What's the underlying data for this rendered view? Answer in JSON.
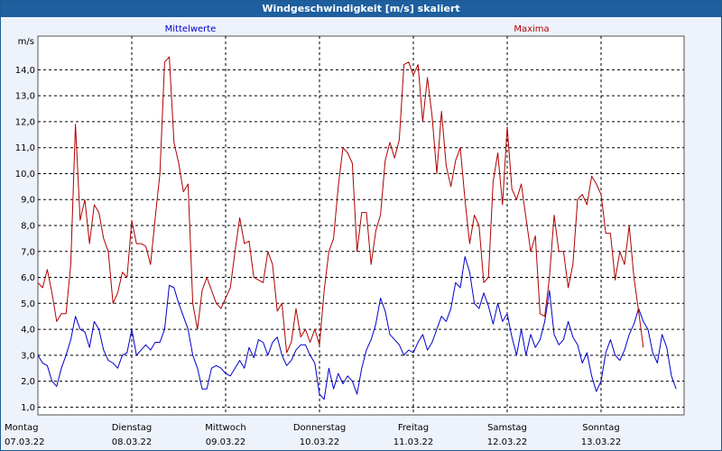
{
  "window": {
    "title": "Windgeschwindigkeit [m/s] skaliert"
  },
  "chart_data": {
    "type": "line",
    "title": "Windgeschwindigkeit [m/s] skaliert",
    "ylabel": "m/s",
    "ylim": [
      0.7,
      15.3
    ],
    "yticks": [
      "1,0",
      "2,0",
      "3,0",
      "4,0",
      "5,0",
      "6,0",
      "7,0",
      "8,0",
      "9,0",
      "10,0",
      "11,0",
      "12,0",
      "13,0",
      "14,0"
    ],
    "xlim": [
      0,
      7
    ],
    "x_unit": "days from 07.03.22",
    "xticks": [
      {
        "day": "Montag",
        "date": "07.03.22"
      },
      {
        "day": "Dienstag",
        "date": "08.03.22"
      },
      {
        "day": "Mittwoch",
        "date": "09.03.22"
      },
      {
        "day": "Donnerstag",
        "date": "10.03.22"
      },
      {
        "day": "Freitag",
        "date": "11.03.22"
      },
      {
        "day": "Samstag",
        "date": "12.03.22"
      },
      {
        "day": "Sonntag",
        "date": "13.03.22"
      }
    ],
    "grid": true,
    "series": [
      {
        "name": "Mittelwerte",
        "color": "#0000cc",
        "points": [
          [
            0.0,
            3.0
          ],
          [
            0.05,
            2.7
          ],
          [
            0.1,
            2.6
          ],
          [
            0.15,
            2.0
          ],
          [
            0.2,
            1.8
          ],
          [
            0.25,
            2.5
          ],
          [
            0.3,
            3.0
          ],
          [
            0.35,
            3.6
          ],
          [
            0.4,
            4.5
          ],
          [
            0.45,
            4.0
          ],
          [
            0.5,
            3.9
          ],
          [
            0.55,
            3.3
          ],
          [
            0.6,
            4.3
          ],
          [
            0.65,
            4.0
          ],
          [
            0.7,
            3.2
          ],
          [
            0.75,
            2.8
          ],
          [
            0.8,
            2.7
          ],
          [
            0.85,
            2.5
          ],
          [
            0.9,
            3.0
          ],
          [
            0.95,
            3.1
          ],
          [
            1.0,
            4.0
          ],
          [
            1.05,
            3.0
          ],
          [
            1.1,
            3.2
          ],
          [
            1.15,
            3.4
          ],
          [
            1.2,
            3.2
          ],
          [
            1.25,
            3.5
          ],
          [
            1.3,
            3.5
          ],
          [
            1.35,
            4.0
          ],
          [
            1.4,
            5.7
          ],
          [
            1.45,
            5.6
          ],
          [
            1.5,
            5.0
          ],
          [
            1.55,
            4.5
          ],
          [
            1.6,
            4.0
          ],
          [
            1.65,
            3.0
          ],
          [
            1.7,
            2.5
          ],
          [
            1.75,
            1.7
          ],
          [
            1.8,
            1.7
          ],
          [
            1.85,
            2.5
          ],
          [
            1.9,
            2.6
          ],
          [
            1.95,
            2.5
          ],
          [
            2.0,
            2.3
          ],
          [
            2.05,
            2.2
          ],
          [
            2.1,
            2.5
          ],
          [
            2.15,
            2.8
          ],
          [
            2.2,
            2.5
          ],
          [
            2.25,
            3.3
          ],
          [
            2.3,
            2.9
          ],
          [
            2.35,
            3.6
          ],
          [
            2.4,
            3.5
          ],
          [
            2.45,
            3.0
          ],
          [
            2.5,
            3.5
          ],
          [
            2.55,
            3.7
          ],
          [
            2.6,
            3.0
          ],
          [
            2.65,
            2.6
          ],
          [
            2.7,
            2.8
          ],
          [
            2.75,
            3.2
          ],
          [
            2.8,
            3.4
          ],
          [
            2.85,
            3.4
          ],
          [
            2.9,
            3.0
          ],
          [
            2.95,
            2.7
          ],
          [
            3.0,
            1.5
          ],
          [
            3.05,
            1.3
          ],
          [
            3.1,
            2.5
          ],
          [
            3.15,
            1.7
          ],
          [
            3.2,
            2.3
          ],
          [
            3.25,
            1.9
          ],
          [
            3.3,
            2.2
          ],
          [
            3.35,
            2.0
          ],
          [
            3.4,
            1.5
          ],
          [
            3.45,
            2.5
          ],
          [
            3.5,
            3.2
          ],
          [
            3.55,
            3.6
          ],
          [
            3.6,
            4.2
          ],
          [
            3.65,
            5.2
          ],
          [
            3.7,
            4.7
          ],
          [
            3.75,
            3.8
          ],
          [
            3.8,
            3.6
          ],
          [
            3.85,
            3.4
          ],
          [
            3.9,
            3.0
          ],
          [
            3.95,
            3.2
          ],
          [
            4.0,
            3.1
          ],
          [
            4.05,
            3.5
          ],
          [
            4.1,
            3.8
          ],
          [
            4.15,
            3.2
          ],
          [
            4.2,
            3.5
          ],
          [
            4.25,
            4.0
          ],
          [
            4.3,
            4.5
          ],
          [
            4.35,
            4.3
          ],
          [
            4.4,
            4.8
          ],
          [
            4.45,
            5.8
          ],
          [
            4.5,
            5.6
          ],
          [
            4.55,
            6.8
          ],
          [
            4.6,
            6.2
          ],
          [
            4.65,
            5.0
          ],
          [
            4.7,
            4.8
          ],
          [
            4.75,
            5.4
          ],
          [
            4.8,
            4.9
          ],
          [
            4.85,
            4.2
          ],
          [
            4.9,
            5.0
          ],
          [
            4.95,
            4.3
          ],
          [
            5.0,
            4.6
          ],
          [
            5.05,
            3.7
          ],
          [
            5.1,
            3.0
          ],
          [
            5.15,
            4.0
          ],
          [
            5.2,
            3.0
          ],
          [
            5.25,
            3.8
          ],
          [
            5.3,
            3.3
          ],
          [
            5.35,
            3.6
          ],
          [
            5.4,
            4.3
          ],
          [
            5.45,
            5.5
          ],
          [
            5.5,
            3.8
          ],
          [
            5.55,
            3.4
          ],
          [
            5.6,
            3.6
          ],
          [
            5.65,
            4.3
          ],
          [
            5.7,
            3.7
          ],
          [
            5.75,
            3.4
          ],
          [
            5.8,
            2.7
          ],
          [
            5.85,
            3.1
          ],
          [
            5.9,
            2.2
          ],
          [
            5.95,
            1.6
          ],
          [
            6.0,
            2.0
          ],
          [
            6.05,
            3.1
          ],
          [
            6.1,
            3.6
          ],
          [
            6.15,
            3.0
          ],
          [
            6.2,
            2.8
          ],
          [
            6.25,
            3.2
          ],
          [
            6.3,
            3.8
          ],
          [
            6.35,
            4.2
          ],
          [
            6.4,
            4.8
          ],
          [
            6.45,
            4.3
          ],
          [
            6.5,
            4.0
          ],
          [
            6.55,
            3.1
          ],
          [
            6.6,
            2.7
          ],
          [
            6.65,
            3.8
          ],
          [
            6.7,
            3.3
          ],
          [
            6.75,
            2.2
          ],
          [
            6.8,
            1.7
          ]
        ]
      },
      {
        "name": "Maxima",
        "color": "#b00000",
        "points": [
          [
            0.0,
            5.8
          ],
          [
            0.05,
            5.6
          ],
          [
            0.1,
            6.3
          ],
          [
            0.15,
            5.4
          ],
          [
            0.2,
            4.3
          ],
          [
            0.25,
            4.6
          ],
          [
            0.3,
            4.6
          ],
          [
            0.35,
            6.5
          ],
          [
            0.4,
            11.9
          ],
          [
            0.45,
            8.2
          ],
          [
            0.5,
            9.0
          ],
          [
            0.55,
            7.3
          ],
          [
            0.6,
            8.8
          ],
          [
            0.65,
            8.5
          ],
          [
            0.7,
            7.5
          ],
          [
            0.75,
            7.0
          ],
          [
            0.8,
            5.0
          ],
          [
            0.85,
            5.4
          ],
          [
            0.9,
            6.2
          ],
          [
            0.95,
            6.0
          ],
          [
            1.0,
            8.2
          ],
          [
            1.05,
            7.3
          ],
          [
            1.1,
            7.3
          ],
          [
            1.15,
            7.2
          ],
          [
            1.2,
            6.5
          ],
          [
            1.25,
            8.3
          ],
          [
            1.3,
            10.0
          ],
          [
            1.35,
            14.3
          ],
          [
            1.4,
            14.5
          ],
          [
            1.45,
            11.2
          ],
          [
            1.5,
            10.4
          ],
          [
            1.55,
            9.3
          ],
          [
            1.6,
            9.6
          ],
          [
            1.65,
            5.0
          ],
          [
            1.7,
            4.0
          ],
          [
            1.75,
            5.5
          ],
          [
            1.8,
            6.0
          ],
          [
            1.85,
            5.5
          ],
          [
            1.9,
            5.0
          ],
          [
            1.95,
            4.8
          ],
          [
            2.0,
            5.2
          ],
          [
            2.05,
            5.6
          ],
          [
            2.1,
            7.0
          ],
          [
            2.15,
            8.3
          ],
          [
            2.2,
            7.3
          ],
          [
            2.25,
            7.4
          ],
          [
            2.3,
            6.0
          ],
          [
            2.35,
            5.9
          ],
          [
            2.4,
            5.8
          ],
          [
            2.45,
            7.0
          ],
          [
            2.5,
            6.5
          ],
          [
            2.55,
            4.7
          ],
          [
            2.6,
            5.0
          ],
          [
            2.65,
            3.1
          ],
          [
            2.7,
            3.5
          ],
          [
            2.75,
            4.8
          ],
          [
            2.8,
            3.7
          ],
          [
            2.85,
            4.0
          ],
          [
            2.9,
            3.5
          ],
          [
            2.95,
            4.0
          ],
          [
            3.0,
            3.4
          ],
          [
            3.05,
            5.5
          ],
          [
            3.1,
            7.0
          ],
          [
            3.15,
            7.5
          ],
          [
            3.2,
            9.5
          ],
          [
            3.25,
            11.0
          ],
          [
            3.3,
            10.8
          ],
          [
            3.35,
            10.4
          ],
          [
            3.4,
            7.0
          ],
          [
            3.45,
            8.5
          ],
          [
            3.5,
            8.5
          ],
          [
            3.55,
            6.5
          ],
          [
            3.6,
            7.8
          ],
          [
            3.65,
            8.4
          ],
          [
            3.7,
            10.5
          ],
          [
            3.75,
            11.2
          ],
          [
            3.8,
            10.6
          ],
          [
            3.85,
            11.3
          ],
          [
            3.9,
            14.2
          ],
          [
            3.95,
            14.3
          ],
          [
            4.0,
            13.8
          ],
          [
            4.05,
            14.2
          ],
          [
            4.1,
            12.0
          ],
          [
            4.15,
            13.7
          ],
          [
            4.2,
            12.2
          ],
          [
            4.25,
            10.0
          ],
          [
            4.3,
            12.4
          ],
          [
            4.35,
            10.3
          ],
          [
            4.4,
            9.5
          ],
          [
            4.45,
            10.5
          ],
          [
            4.5,
            11.0
          ],
          [
            4.55,
            9.0
          ],
          [
            4.6,
            7.3
          ],
          [
            4.65,
            8.4
          ],
          [
            4.7,
            8.0
          ],
          [
            4.75,
            5.8
          ],
          [
            4.8,
            6.0
          ],
          [
            4.85,
            9.7
          ],
          [
            4.9,
            10.8
          ],
          [
            4.95,
            8.8
          ],
          [
            5.0,
            11.8
          ],
          [
            5.05,
            9.4
          ],
          [
            5.1,
            9.0
          ],
          [
            5.15,
            9.6
          ],
          [
            5.2,
            8.3
          ],
          [
            5.25,
            7.0
          ],
          [
            5.3,
            7.6
          ],
          [
            5.35,
            4.6
          ],
          [
            5.4,
            4.5
          ],
          [
            5.45,
            6.0
          ],
          [
            5.5,
            8.4
          ],
          [
            5.55,
            7.0
          ],
          [
            5.6,
            7.0
          ],
          [
            5.65,
            5.6
          ],
          [
            5.7,
            6.5
          ],
          [
            5.75,
            9.0
          ],
          [
            5.8,
            9.2
          ],
          [
            5.85,
            8.8
          ],
          [
            5.9,
            9.9
          ],
          [
            5.95,
            9.6
          ],
          [
            6.0,
            9.2
          ],
          [
            6.05,
            7.7
          ],
          [
            6.1,
            7.7
          ],
          [
            6.15,
            5.9
          ],
          [
            6.2,
            7.0
          ],
          [
            6.25,
            6.5
          ],
          [
            6.3,
            8.0
          ],
          [
            6.35,
            6.0
          ],
          [
            6.4,
            4.7
          ],
          [
            6.45,
            3.3
          ]
        ]
      }
    ]
  }
}
